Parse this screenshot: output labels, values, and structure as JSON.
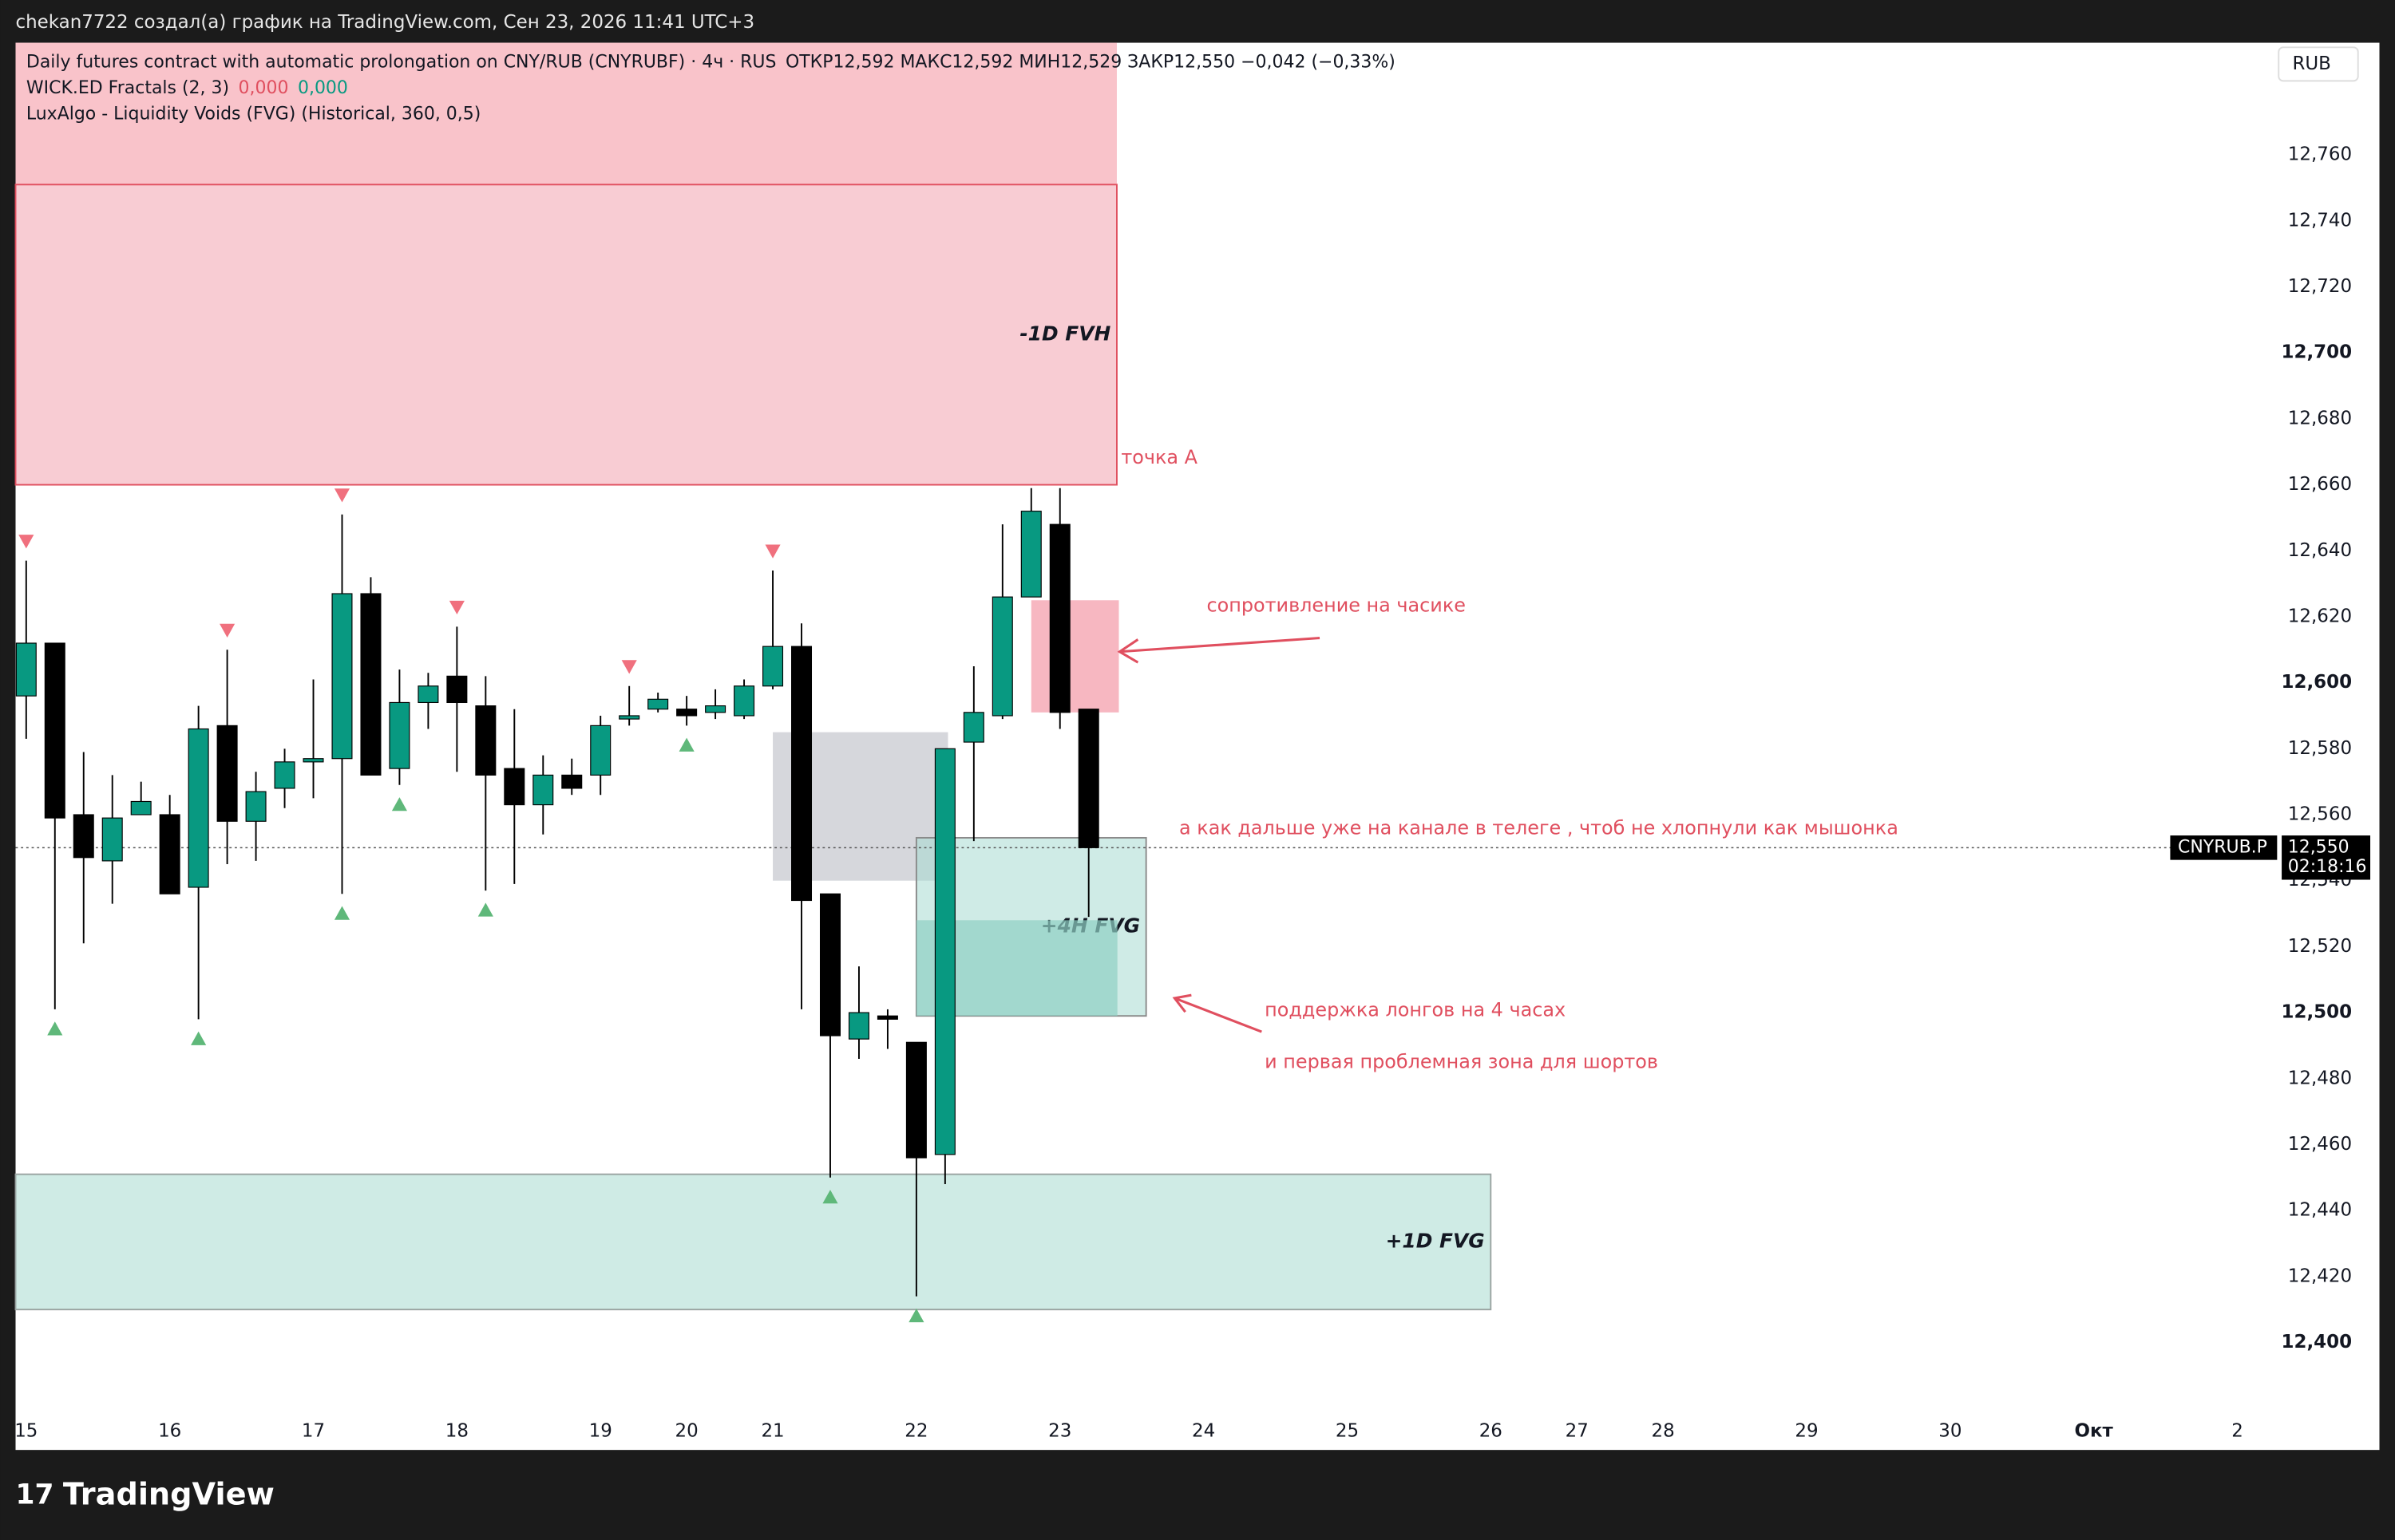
{
  "chart_data": {
    "type": "candlestick",
    "credit": "chekan7722 создал(а) график на TradingView.com, Сен 23, 2026 11:41 UTC+3",
    "title": "Daily futures contract with automatic prolongation on CNY/RUB (CNYRUBF) · 4ч · RUS",
    "ohlc_text": "ОТКР12,592  МАКС12,592  МИН12,529  ЗАКР12,550  −0,042 (−0,33%)",
    "indicator_1": "WICK.ED Fractals (2, 3)",
    "indicator_1_values": [
      "0,000",
      "0,000"
    ],
    "indicator_2": "LuxAlgo - Liquidity Voids (FVG) (Historical, 360, 0,5)",
    "currency": "RUB",
    "symbol_tag": "CNYRUB.P",
    "last_price": 12.55,
    "last_price_label": "12,550",
    "countdown": "02:18:16",
    "brand": "TradingView",
    "up_color": "#089981",
    "down_color": "#000000",
    "x": [
      0,
      1,
      2,
      3,
      4,
      5,
      6,
      7,
      8,
      9,
      10,
      11,
      12,
      13,
      14,
      15,
      16,
      17,
      18,
      19,
      20,
      21,
      22,
      23,
      24,
      25,
      26,
      27,
      28,
      29,
      30,
      31,
      32,
      33,
      34,
      35,
      36,
      37
    ],
    "open": [
      12.596,
      12.612,
      12.56,
      12.546,
      12.56,
      12.56,
      12.538,
      12.587,
      12.558,
      12.568,
      12.576,
      12.577,
      12.627,
      12.574,
      12.594,
      12.602,
      12.593,
      12.574,
      12.563,
      12.572,
      12.572,
      12.589,
      12.592,
      12.592,
      12.591,
      12.59,
      12.599,
      12.611,
      12.536,
      12.492,
      12.499,
      12.491,
      12.457,
      12.582,
      12.59,
      12.626,
      12.648,
      12.592
    ],
    "high": [
      12.637,
      12.612,
      12.579,
      12.572,
      12.57,
      12.566,
      12.593,
      12.61,
      12.573,
      12.58,
      12.601,
      12.651,
      12.632,
      12.604,
      12.603,
      12.617,
      12.602,
      12.592,
      12.578,
      12.577,
      12.59,
      12.599,
      12.597,
      12.596,
      12.598,
      12.601,
      12.634,
      12.618,
      12.536,
      12.514,
      12.501,
      12.491,
      12.58,
      12.605,
      12.648,
      12.659,
      12.659,
      12.592
    ],
    "low": [
      12.583,
      12.501,
      12.521,
      12.533,
      12.56,
      12.536,
      12.498,
      12.545,
      12.546,
      12.562,
      12.565,
      12.536,
      12.572,
      12.569,
      12.586,
      12.573,
      12.537,
      12.539,
      12.554,
      12.566,
      12.566,
      12.587,
      12.591,
      12.587,
      12.589,
      12.589,
      12.598,
      12.501,
      12.45,
      12.486,
      12.489,
      12.414,
      12.448,
      12.552,
      12.589,
      12.626,
      12.586,
      12.529
    ],
    "close": [
      12.612,
      12.559,
      12.547,
      12.559,
      12.564,
      12.536,
      12.586,
      12.558,
      12.567,
      12.576,
      12.577,
      12.627,
      12.572,
      12.594,
      12.599,
      12.594,
      12.572,
      12.563,
      12.572,
      12.568,
      12.587,
      12.59,
      12.595,
      12.59,
      12.593,
      12.599,
      12.611,
      12.534,
      12.493,
      12.5,
      12.498,
      12.456,
      12.58,
      12.591,
      12.626,
      12.652,
      12.591,
      12.55
    ],
    "fractal_highs": [
      0,
      7,
      11,
      15,
      21,
      26
    ],
    "fractal_lows": [
      1,
      6,
      11,
      13,
      16,
      23,
      28,
      31
    ],
    "zones": [
      {
        "x": [
          -0.37,
          37.98
        ],
        "y": [
          12.743,
          12.794
        ],
        "fill": "#f9c3ca"
      },
      {
        "x": [
          -0.37,
          37.98
        ],
        "y": [
          12.66,
          12.751
        ],
        "fill": "#f8ccd3",
        "stroke": "#e04f5f",
        "label": "-1D FVH"
      },
      {
        "x": [
          26,
          32.1
        ],
        "y": [
          12.54,
          12.585
        ],
        "fill": "#d6d7dc"
      },
      {
        "x": [
          31,
          39
        ],
        "y": [
          12.499,
          12.553
        ],
        "fill": "#a8dbd1",
        "stroke": "#8a8a8a",
        "opacity": 0.55,
        "label": "+4H FVG"
      },
      {
        "x": [
          31,
          38
        ],
        "y": [
          12.499,
          12.528
        ],
        "fill": "#8fd0c3",
        "opacity": 0.7
      },
      {
        "x": [
          35,
          38.05
        ],
        "y": [
          12.591,
          12.625
        ],
        "fill": "#f7b7c1"
      },
      {
        "x": [
          -0.37,
          51
        ],
        "y": [
          12.41,
          12.451
        ],
        "fill": "#cfebe5",
        "stroke": "#9aa3a1",
        "label": "+1D FVG"
      }
    ],
    "annotations": [
      "точка А",
      "сопротивление на часике",
      "а как дальше уже на канале в телеге , чтоб не хлопнули как мышонка",
      "поддержка лонгов на 4 часах",
      "и первая проблемная зона для шортов"
    ],
    "xlim": [
      -0.37,
      77.8
    ],
    "xticks": [
      {
        "value": 0,
        "label": "15"
      },
      {
        "value": 5,
        "label": "16"
      },
      {
        "value": 10,
        "label": "17"
      },
      {
        "value": 15,
        "label": "18"
      },
      {
        "value": 20,
        "label": "19"
      },
      {
        "value": 23,
        "label": "20"
      },
      {
        "value": 26,
        "label": "21"
      },
      {
        "value": 31,
        "label": "22"
      },
      {
        "value": 36,
        "label": "23"
      },
      {
        "value": 41,
        "label": "24"
      },
      {
        "value": 46,
        "label": "25"
      },
      {
        "value": 51,
        "label": "26"
      },
      {
        "value": 54,
        "label": "27"
      },
      {
        "value": 57,
        "label": "28"
      },
      {
        "value": 62,
        "label": "29"
      },
      {
        "value": 67,
        "label": "30"
      },
      {
        "value": 72,
        "label": "Окт"
      },
      {
        "value": 77,
        "label": "2"
      }
    ],
    "ylim": [
      12.379,
      12.794
    ],
    "yticks": [
      {
        "value": 12.76,
        "label": "12,760"
      },
      {
        "value": 12.74,
        "label": "12,740"
      },
      {
        "value": 12.72,
        "label": "12,720"
      },
      {
        "value": 12.7,
        "label": "12,700"
      },
      {
        "value": 12.68,
        "label": "12,680"
      },
      {
        "value": 12.66,
        "label": "12,660"
      },
      {
        "value": 12.64,
        "label": "12,640"
      },
      {
        "value": 12.62,
        "label": "12,620"
      },
      {
        "value": 12.6,
        "label": "12,600"
      },
      {
        "value": 12.58,
        "label": "12,580"
      },
      {
        "value": 12.56,
        "label": "12,560"
      },
      {
        "value": 12.54,
        "label": "12,540"
      },
      {
        "value": 12.52,
        "label": "12,520"
      },
      {
        "value": 12.5,
        "label": "12,500"
      },
      {
        "value": 12.48,
        "label": "12,480"
      },
      {
        "value": 12.46,
        "label": "12,460"
      },
      {
        "value": 12.44,
        "label": "12,440"
      },
      {
        "value": 12.42,
        "label": "12,420"
      },
      {
        "value": 12.4,
        "label": "12,400"
      }
    ]
  }
}
